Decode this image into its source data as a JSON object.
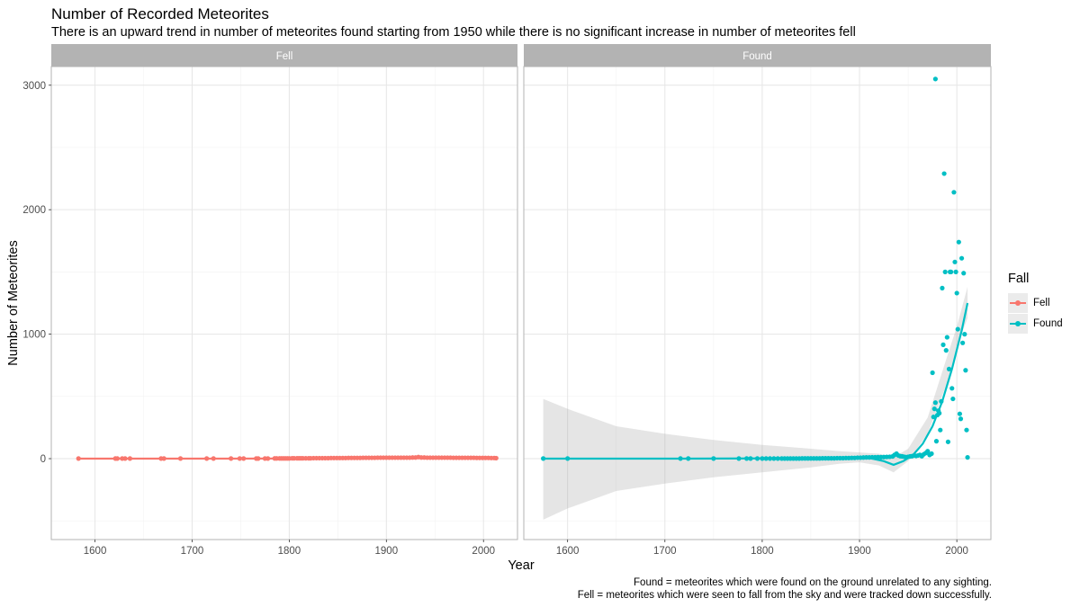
{
  "chart_data": {
    "type": "scatter",
    "title": "Number of Recorded Meteorites",
    "subtitle": "There is an upward trend in number of meteorites found  starting from 1950 while there is no significant increase in number of meteorites fell",
    "xlabel": "Year",
    "ylabel": "Number of Meteorites",
    "xlim": [
      1555,
      2035
    ],
    "ylim": [
      -650,
      3150
    ],
    "x_ticks": [
      1600,
      1700,
      1800,
      1900,
      2000
    ],
    "y_ticks": [
      0,
      1000,
      2000,
      3000
    ],
    "grid": true,
    "legend": {
      "title": "Fall",
      "position": "right",
      "entries": [
        "Fell",
        "Found"
      ]
    },
    "caption": [
      "Found = meteorites which were found on the ground unrelated to any sighting.",
      "Fell = meteorites which were seen to fall from the sky and were tracked down successfully."
    ],
    "facets": [
      {
        "label": "Fell",
        "color": "#F8766D",
        "points": [
          [
            1583,
            1
          ],
          [
            1621,
            1
          ],
          [
            1623,
            1
          ],
          [
            1628,
            1
          ],
          [
            1631,
            1
          ],
          [
            1636,
            1
          ],
          [
            1668,
            1
          ],
          [
            1671,
            1
          ],
          [
            1688,
            1
          ],
          [
            1715,
            1
          ],
          [
            1722,
            1
          ],
          [
            1740,
            1
          ],
          [
            1749,
            1
          ],
          [
            1753,
            1
          ],
          [
            1766,
            1
          ],
          [
            1768,
            1
          ],
          [
            1775,
            1
          ],
          [
            1778,
            1
          ],
          [
            1785,
            2
          ],
          [
            1787,
            2
          ],
          [
            1790,
            2
          ],
          [
            1792,
            2
          ],
          [
            1794,
            2
          ],
          [
            1796,
            2
          ],
          [
            1798,
            2
          ],
          [
            1800,
            2
          ],
          [
            1803,
            3
          ],
          [
            1805,
            3
          ],
          [
            1808,
            3
          ],
          [
            1810,
            3
          ],
          [
            1812,
            3
          ],
          [
            1814,
            3
          ],
          [
            1817,
            3
          ],
          [
            1820,
            3
          ],
          [
            1822,
            3
          ],
          [
            1825,
            4
          ],
          [
            1828,
            4
          ],
          [
            1831,
            4
          ],
          [
            1834,
            4
          ],
          [
            1837,
            4
          ],
          [
            1840,
            4
          ],
          [
            1843,
            5
          ],
          [
            1846,
            5
          ],
          [
            1849,
            5
          ],
          [
            1852,
            5
          ],
          [
            1855,
            5
          ],
          [
            1858,
            5
          ],
          [
            1861,
            6
          ],
          [
            1864,
            6
          ],
          [
            1867,
            6
          ],
          [
            1870,
            6
          ],
          [
            1873,
            6
          ],
          [
            1876,
            7
          ],
          [
            1879,
            7
          ],
          [
            1882,
            7
          ],
          [
            1885,
            7
          ],
          [
            1888,
            7
          ],
          [
            1891,
            8
          ],
          [
            1894,
            8
          ],
          [
            1897,
            8
          ],
          [
            1900,
            8
          ],
          [
            1903,
            8
          ],
          [
            1906,
            8
          ],
          [
            1909,
            8
          ],
          [
            1912,
            8
          ],
          [
            1915,
            8
          ],
          [
            1918,
            8
          ],
          [
            1921,
            8
          ],
          [
            1924,
            8
          ],
          [
            1927,
            9
          ],
          [
            1930,
            9
          ],
          [
            1933,
            13
          ],
          [
            1936,
            9
          ],
          [
            1939,
            9
          ],
          [
            1942,
            8
          ],
          [
            1945,
            8
          ],
          [
            1948,
            8
          ],
          [
            1951,
            8
          ],
          [
            1954,
            8
          ],
          [
            1957,
            8
          ],
          [
            1960,
            8
          ],
          [
            1963,
            8
          ],
          [
            1966,
            8
          ],
          [
            1969,
            7
          ],
          [
            1972,
            7
          ],
          [
            1975,
            7
          ],
          [
            1978,
            7
          ],
          [
            1981,
            7
          ],
          [
            1984,
            7
          ],
          [
            1987,
            7
          ],
          [
            1990,
            7
          ],
          [
            1993,
            6
          ],
          [
            1996,
            6
          ],
          [
            1999,
            6
          ],
          [
            2002,
            6
          ],
          [
            2005,
            6
          ],
          [
            2008,
            5
          ],
          [
            2011,
            5
          ],
          [
            2013,
            4
          ]
        ],
        "trend": [
          [
            1583,
            0
          ],
          [
            1700,
            0
          ],
          [
            1800,
            1
          ],
          [
            1900,
            4
          ],
          [
            2013,
            6
          ]
        ]
      },
      {
        "label": "Found",
        "color": "#00BFC4",
        "points": [
          [
            1575,
            1
          ],
          [
            1600,
            1
          ],
          [
            1716,
            1
          ],
          [
            1724,
            1
          ],
          [
            1750,
            1
          ],
          [
            1776,
            1
          ],
          [
            1784,
            1
          ],
          [
            1788,
            1
          ],
          [
            1795,
            1
          ],
          [
            1800,
            1
          ],
          [
            1804,
            1
          ],
          [
            1808,
            1
          ],
          [
            1812,
            1
          ],
          [
            1816,
            1
          ],
          [
            1820,
            1
          ],
          [
            1823,
            1
          ],
          [
            1826,
            1
          ],
          [
            1829,
            1
          ],
          [
            1832,
            1
          ],
          [
            1835,
            1
          ],
          [
            1838,
            1
          ],
          [
            1841,
            2
          ],
          [
            1844,
            2
          ],
          [
            1847,
            2
          ],
          [
            1850,
            2
          ],
          [
            1853,
            2
          ],
          [
            1856,
            2
          ],
          [
            1859,
            2
          ],
          [
            1862,
            3
          ],
          [
            1865,
            3
          ],
          [
            1868,
            3
          ],
          [
            1871,
            3
          ],
          [
            1874,
            3
          ],
          [
            1877,
            4
          ],
          [
            1880,
            4
          ],
          [
            1883,
            4
          ],
          [
            1886,
            5
          ],
          [
            1889,
            5
          ],
          [
            1892,
            6
          ],
          [
            1895,
            6
          ],
          [
            1898,
            8
          ],
          [
            1901,
            8
          ],
          [
            1904,
            9
          ],
          [
            1907,
            10
          ],
          [
            1910,
            10
          ],
          [
            1913,
            11
          ],
          [
            1916,
            11
          ],
          [
            1919,
            12
          ],
          [
            1922,
            12
          ],
          [
            1925,
            13
          ],
          [
            1928,
            14
          ],
          [
            1931,
            15
          ],
          [
            1934,
            18
          ],
          [
            1936,
            30
          ],
          [
            1938,
            40
          ],
          [
            1940,
            25
          ],
          [
            1942,
            20
          ],
          [
            1944,
            18
          ],
          [
            1946,
            15
          ],
          [
            1948,
            12
          ],
          [
            1950,
            15
          ],
          [
            1952,
            18
          ],
          [
            1954,
            20
          ],
          [
            1956,
            25
          ],
          [
            1958,
            22
          ],
          [
            1960,
            25
          ],
          [
            1962,
            30
          ],
          [
            1964,
            20
          ],
          [
            1966,
            35
          ],
          [
            1968,
            45
          ],
          [
            1970,
            60
          ],
          [
            1972,
            30
          ],
          [
            1974,
            40
          ],
          [
            1975,
            690
          ],
          [
            1976,
            335
          ],
          [
            1977,
            400
          ],
          [
            1978,
            450
          ],
          [
            1979,
            140
          ],
          [
            1980,
            350
          ],
          [
            1981,
            385
          ],
          [
            1982,
            365
          ],
          [
            1983,
            230
          ],
          [
            1984,
            460
          ],
          [
            1985,
            1370
          ],
          [
            1986,
            915
          ],
          [
            1987,
            2290
          ],
          [
            1988,
            1500
          ],
          [
            1989,
            870
          ],
          [
            1990,
            975
          ],
          [
            1991,
            135
          ],
          [
            1992,
            720
          ],
          [
            1993,
            1500
          ],
          [
            1994,
            1500
          ],
          [
            1995,
            565
          ],
          [
            1996,
            480
          ],
          [
            1997,
            2140
          ],
          [
            1998,
            1580
          ],
          [
            1999,
            1500
          ],
          [
            2000,
            1330
          ],
          [
            2001,
            1040
          ],
          [
            2002,
            1740
          ],
          [
            2003,
            360
          ],
          [
            2004,
            320
          ],
          [
            2005,
            1610
          ],
          [
            2006,
            930
          ],
          [
            2007,
            1490
          ],
          [
            2008,
            1000
          ],
          [
            2009,
            710
          ],
          [
            2010,
            230
          ],
          [
            2011,
            10
          ],
          [
            1978,
            3050
          ]
        ],
        "trend": [
          [
            1575,
            0
          ],
          [
            1700,
            0
          ],
          [
            1800,
            2
          ],
          [
            1880,
            8
          ],
          [
            1910,
            5
          ],
          [
            1925,
            -20
          ],
          [
            1935,
            -50
          ],
          [
            1945,
            -20
          ],
          [
            1955,
            30
          ],
          [
            1965,
            120
          ],
          [
            1975,
            260
          ],
          [
            1985,
            460
          ],
          [
            1995,
            720
          ],
          [
            2005,
            1030
          ],
          [
            2011,
            1250
          ]
        ],
        "band_upper": [
          [
            1575,
            480
          ],
          [
            1600,
            400
          ],
          [
            1650,
            260
          ],
          [
            1700,
            200
          ],
          [
            1750,
            150
          ],
          [
            1800,
            110
          ],
          [
            1850,
            80
          ],
          [
            1880,
            60
          ],
          [
            1900,
            50
          ],
          [
            1920,
            40
          ],
          [
            1935,
            10
          ],
          [
            1950,
            80
          ],
          [
            1970,
            330
          ],
          [
            1990,
            820
          ],
          [
            2000,
            1060
          ],
          [
            2011,
            1380
          ]
        ],
        "band_lower": [
          [
            1575,
            -490
          ],
          [
            1600,
            -400
          ],
          [
            1650,
            -260
          ],
          [
            1700,
            -200
          ],
          [
            1750,
            -150
          ],
          [
            1800,
            -110
          ],
          [
            1850,
            -70
          ],
          [
            1880,
            -40
          ],
          [
            1900,
            -30
          ],
          [
            1920,
            -55
          ],
          [
            1935,
            -110
          ],
          [
            1950,
            -20
          ],
          [
            1970,
            200
          ],
          [
            1990,
            610
          ],
          [
            2000,
            900
          ],
          [
            2011,
            1130
          ]
        ]
      }
    ]
  }
}
